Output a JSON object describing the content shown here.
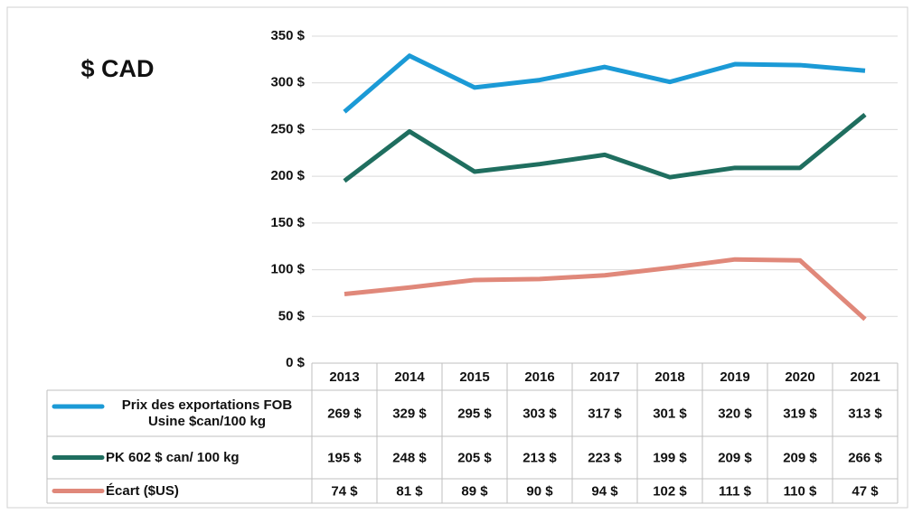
{
  "chart_data": {
    "type": "line",
    "title": "$ CAD",
    "categories": [
      "2013",
      "2014",
      "2015",
      "2016",
      "2017",
      "2018",
      "2019",
      "2020",
      "2021"
    ],
    "series": [
      {
        "name": "Prix des exportations FOB Usine $can/100 kg",
        "color": "#1b9ad6",
        "values": [
          269,
          329,
          295,
          303,
          317,
          301,
          320,
          319,
          313
        ],
        "value_labels": [
          "269 $",
          "329 $",
          "295 $",
          "303 $",
          "317 $",
          "301 $",
          "320 $",
          "319 $",
          "313 $"
        ]
      },
      {
        "name": "PK 602 $ can/ 100 kg",
        "color": "#1f6e5f",
        "values": [
          195,
          248,
          205,
          213,
          223,
          199,
          209,
          209,
          266
        ],
        "value_labels": [
          "195 $",
          "248 $",
          "205 $",
          "213 $",
          "223 $",
          "199 $",
          "209 $",
          "209 $",
          "266 $"
        ]
      },
      {
        "name": "Écart ($US)",
        "color": "#e0887a",
        "values": [
          74,
          81,
          89,
          90,
          94,
          102,
          111,
          110,
          47
        ],
        "value_labels": [
          "74 $",
          "81 $",
          "89 $",
          "90 $",
          "94 $",
          "102 $",
          "111 $",
          "110 $",
          "47 $"
        ]
      }
    ],
    "ylim": [
      0,
      350
    ],
    "yticks": [
      {
        "value": 0,
        "label": "0 $"
      },
      {
        "value": 50,
        "label": "50 $"
      },
      {
        "value": 100,
        "label": "100 $"
      },
      {
        "value": 150,
        "label": "150 $"
      },
      {
        "value": 200,
        "label": "200 $"
      },
      {
        "value": 250,
        "label": "250 $"
      },
      {
        "value": 300,
        "label": "300 $"
      },
      {
        "value": 350,
        "label": "350 $"
      }
    ],
    "grid": true
  }
}
